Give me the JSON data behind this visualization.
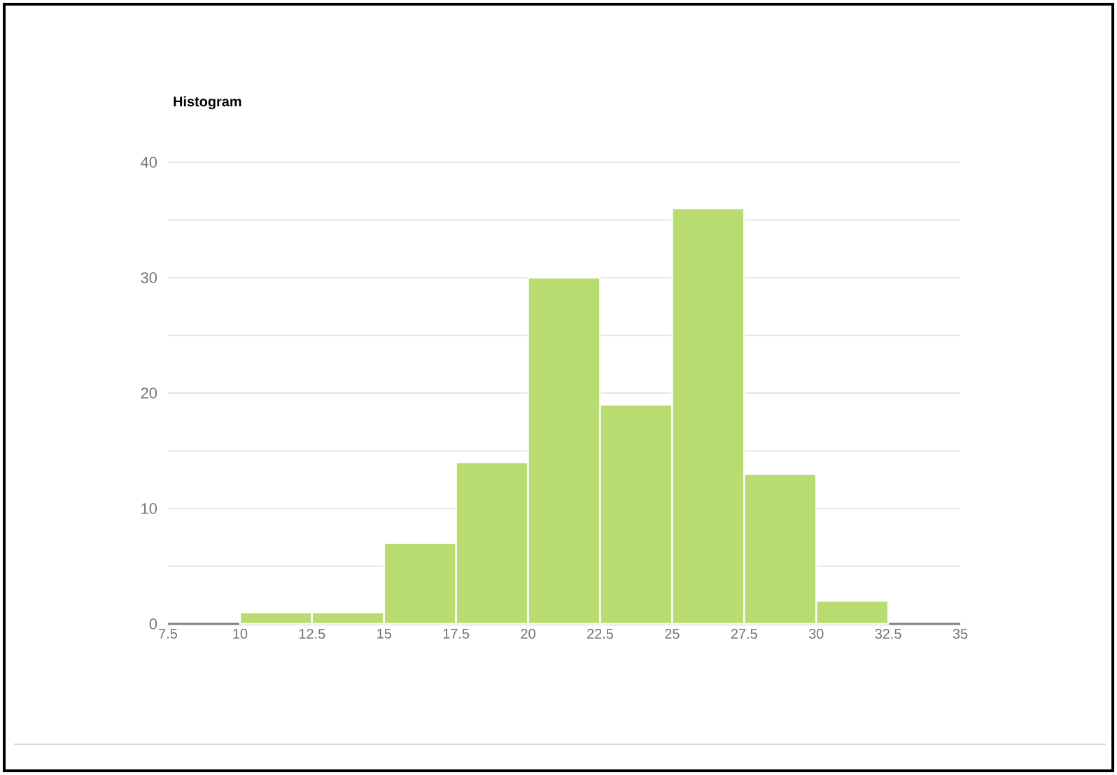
{
  "chart_data": {
    "type": "histogram",
    "title": "Histogram",
    "bins": [
      10,
      12.5,
      15,
      17.5,
      20,
      22.5,
      25,
      27.5,
      30,
      32.5
    ],
    "values": [
      1,
      1,
      7,
      14,
      30,
      19,
      36,
      13,
      2
    ],
    "color": "#b8dc6f",
    "xlim": [
      7.5,
      35
    ],
    "xticks": [
      7.5,
      10,
      12.5,
      15,
      17.5,
      20,
      22.5,
      25,
      27.5,
      30,
      32.5,
      35
    ],
    "ylim": [
      0,
      40
    ],
    "yticks": [
      0,
      {
        "value": 5,
        "label": null
      },
      10,
      {
        "value": 15,
        "label": null
      },
      20,
      {
        "value": 25,
        "label": null
      },
      30,
      {
        "value": 35,
        "label": null
      },
      40
    ],
    "grid": "y"
  }
}
